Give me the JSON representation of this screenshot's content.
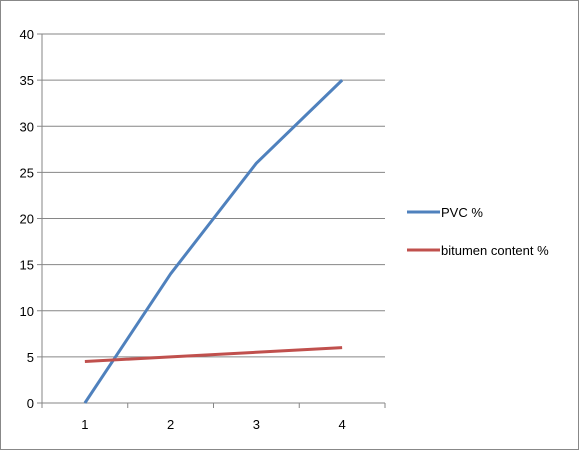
{
  "chart_data": {
    "type": "line",
    "title": "",
    "xlabel": "",
    "ylabel": "",
    "x": [
      1,
      2,
      3,
      4
    ],
    "ylim": [
      0,
      40
    ],
    "yticks": [
      0,
      5,
      10,
      15,
      20,
      25,
      30,
      35,
      40
    ],
    "grid": "horizontal",
    "legend_position": "right",
    "series": [
      {
        "name": "PVC %",
        "values": [
          0,
          14,
          26,
          35
        ],
        "color": "#4f81bd"
      },
      {
        "name": "bitumen content %",
        "values": [
          4.5,
          5,
          5.5,
          6
        ],
        "color": "#c0504d"
      }
    ]
  }
}
